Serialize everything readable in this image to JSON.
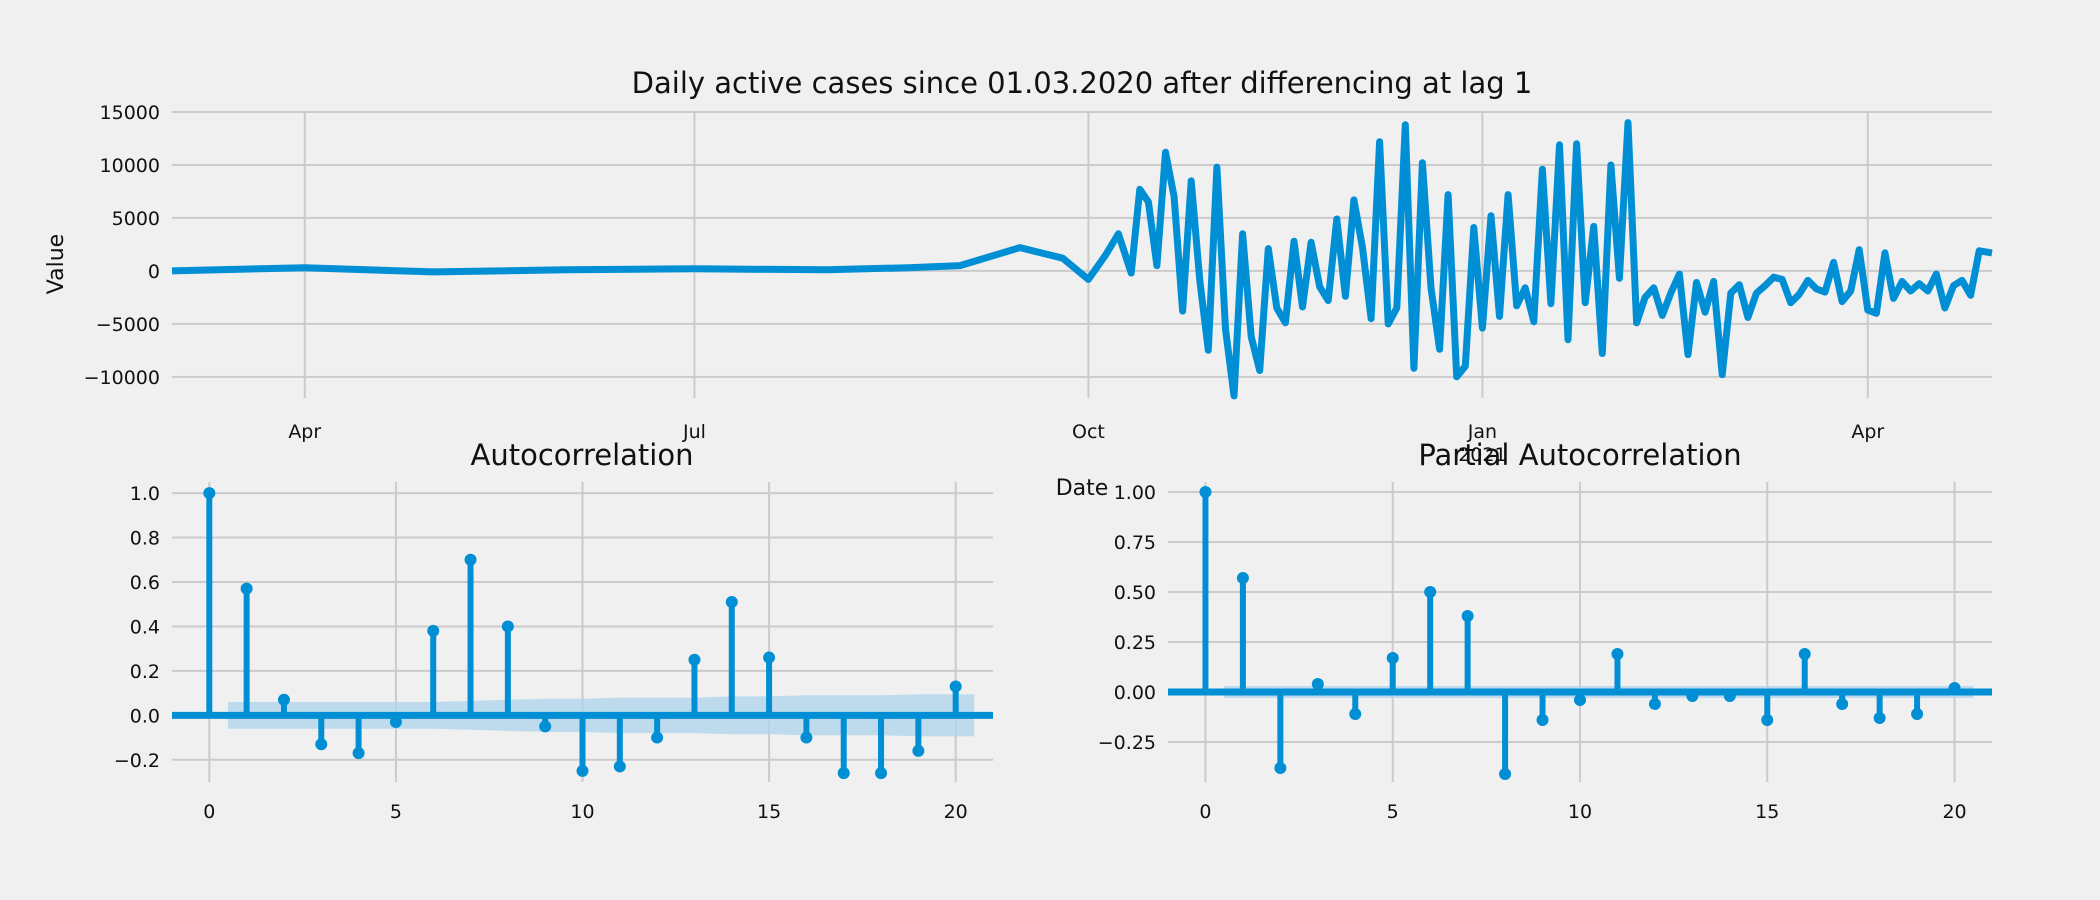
{
  "colors": {
    "background": "#f0f0f0",
    "series": "#008fd5",
    "confidence_band": "#aed4ee",
    "grid": "#cbcbcb"
  },
  "chart_data": [
    {
      "id": "timeseries",
      "type": "line",
      "title": "Daily active cases since 01.03.2020 after differencing at lag 1",
      "xlabel": "Date",
      "ylabel": "Value",
      "x_start": "2020-03-01",
      "x_end": "2021-04-30",
      "x_ticks": [
        {
          "date": "2020-04-01",
          "label": "Apr"
        },
        {
          "date": "2020-07-01",
          "label": "Jul"
        },
        {
          "date": "2020-10-01",
          "label": "Oct"
        },
        {
          "date": "2021-01-01",
          "label": "Jan",
          "sublabel": "2021"
        },
        {
          "date": "2021-04-01",
          "label": "Apr"
        }
      ],
      "ylim": [
        -12000,
        15000
      ],
      "y_ticks": [
        15000,
        10000,
        5000,
        0,
        -5000,
        -10000
      ],
      "y_tick_labels": [
        "15000",
        "10000",
        "5000",
        "0",
        "−5000",
        "−10000"
      ],
      "grid": true,
      "series": [
        {
          "x": [
            "2020-03-01",
            "2020-04-01",
            "2020-05-01",
            "2020-06-01",
            "2020-07-01",
            "2020-08-01",
            "2020-08-20",
            "2020-09-01",
            "2020-09-15",
            "2020-09-25",
            "2020-10-01",
            "2020-10-05",
            "2020-10-08",
            "2020-10-11",
            "2020-10-13",
            "2020-10-15",
            "2020-10-17",
            "2020-10-19",
            "2020-10-21",
            "2020-10-23",
            "2020-10-25",
            "2020-10-27",
            "2020-10-29",
            "2020-10-31",
            "2020-11-02",
            "2020-11-04",
            "2020-11-06",
            "2020-11-08",
            "2020-11-10",
            "2020-11-12",
            "2020-11-14",
            "2020-11-16",
            "2020-11-18",
            "2020-11-20",
            "2020-11-22",
            "2020-11-24",
            "2020-11-26",
            "2020-11-28",
            "2020-11-30",
            "2020-12-02",
            "2020-12-04",
            "2020-12-06",
            "2020-12-08",
            "2020-12-10",
            "2020-12-12",
            "2020-12-14",
            "2020-12-16",
            "2020-12-18",
            "2020-12-20",
            "2020-12-22",
            "2020-12-24",
            "2020-12-26",
            "2020-12-28",
            "2020-12-30",
            "2021-01-01",
            "2021-01-03",
            "2021-01-05",
            "2021-01-07",
            "2021-01-09",
            "2021-01-11",
            "2021-01-13",
            "2021-01-15",
            "2021-01-17",
            "2021-01-19",
            "2021-01-21",
            "2021-01-23",
            "2021-01-25",
            "2021-01-27",
            "2021-01-29",
            "2021-01-31",
            "2021-02-02",
            "2021-02-04",
            "2021-02-06",
            "2021-02-08",
            "2021-02-10",
            "2021-02-12",
            "2021-02-14",
            "2021-02-16",
            "2021-02-18",
            "2021-02-20",
            "2021-02-22",
            "2021-02-24",
            "2021-02-26",
            "2021-02-28",
            "2021-03-02",
            "2021-03-04",
            "2021-03-06",
            "2021-03-08",
            "2021-03-10",
            "2021-03-12",
            "2021-03-14",
            "2021-03-16",
            "2021-03-18",
            "2021-03-20",
            "2021-03-22",
            "2021-03-24",
            "2021-03-26",
            "2021-03-28",
            "2021-03-30",
            "2021-04-01",
            "2021-04-03",
            "2021-04-05",
            "2021-04-07",
            "2021-04-09",
            "2021-04-11",
            "2021-04-13",
            "2021-04-15",
            "2021-04-17",
            "2021-04-19",
            "2021-04-21",
            "2021-04-23",
            "2021-04-25",
            "2021-04-27",
            "2021-04-30"
          ],
          "y": [
            0,
            300,
            -100,
            100,
            200,
            100,
            300,
            500,
            2200,
            1200,
            -800,
            1500,
            3500,
            -200,
            7700,
            6500,
            500,
            11200,
            7000,
            -3800,
            8500,
            -900,
            -7500,
            9800,
            -5500,
            -11800,
            3500,
            -6200,
            -9400,
            2100,
            -3500,
            -4900,
            2800,
            -3400,
            2700,
            -1500,
            -2800,
            4900,
            -2400,
            6700,
            2200,
            -4500,
            12200,
            -5000,
            -3500,
            13800,
            -9200,
            10200,
            -1600,
            -7400,
            7200,
            -10000,
            -9000,
            4100,
            -5400,
            5200,
            -4300,
            7200,
            -3300,
            -1600,
            -4800,
            9600,
            -3100,
            11900,
            -6500,
            12000,
            -3000,
            4200,
            -7800,
            10000,
            -700,
            14000,
            -4900,
            -2500,
            -1600,
            -4200,
            -2100,
            -300,
            -7900,
            -1100,
            -3900,
            -1000,
            -9800,
            -2100,
            -1300,
            -4400,
            -2100,
            -1400,
            -600,
            -800,
            -3000,
            -2200,
            -900,
            -1700,
            -2000,
            800,
            -2900,
            -1900,
            2000,
            -3700,
            -4000,
            1700,
            -2600,
            -1000,
            -1900,
            -1200,
            -1900,
            -300,
            -3500,
            -1400,
            -900,
            -2300,
            1900,
            1700
          ]
        }
      ]
    },
    {
      "id": "acf",
      "type": "stem",
      "title": "Autocorrelation",
      "xlim": [
        -1,
        21
      ],
      "ylim": [
        -0.3,
        1.05
      ],
      "x_ticks": [
        0,
        5,
        10,
        15,
        20
      ],
      "y_ticks": [
        1.0,
        0.8,
        0.6,
        0.4,
        0.2,
        0.0,
        -0.2
      ],
      "y_tick_labels": [
        "1.0",
        "0.8",
        "0.6",
        "0.4",
        "0.2",
        "0.0",
        "−0.2"
      ],
      "lags": [
        0,
        1,
        2,
        3,
        4,
        5,
        6,
        7,
        8,
        9,
        10,
        11,
        12,
        13,
        14,
        15,
        16,
        17,
        18,
        19,
        20
      ],
      "values": [
        1.0,
        0.57,
        0.07,
        -0.13,
        -0.17,
        -0.03,
        0.38,
        0.7,
        0.4,
        -0.05,
        -0.25,
        -0.23,
        -0.1,
        0.25,
        0.51,
        0.26,
        -0.1,
        -0.26,
        -0.26,
        -0.16,
        0.13
      ],
      "confint": [
        0,
        0.06,
        0.06,
        0.06,
        0.06,
        0.06,
        0.06,
        0.065,
        0.07,
        0.075,
        0.075,
        0.08,
        0.08,
        0.08,
        0.085,
        0.085,
        0.09,
        0.09,
        0.09,
        0.095,
        0.095
      ]
    },
    {
      "id": "pacf",
      "type": "stem",
      "title": "Partial Autocorrelation",
      "xlim": [
        -1,
        21
      ],
      "ylim": [
        -0.45,
        1.05
      ],
      "x_ticks": [
        0,
        5,
        10,
        15,
        20
      ],
      "y_ticks": [
        1.0,
        0.75,
        0.5,
        0.25,
        0.0,
        -0.25
      ],
      "y_tick_labels": [
        "1.00",
        "0.75",
        "0.50",
        "0.25",
        "0.00",
        "−0.25"
      ],
      "lags": [
        0,
        1,
        2,
        3,
        4,
        5,
        6,
        7,
        8,
        9,
        10,
        11,
        12,
        13,
        14,
        15,
        16,
        17,
        18,
        19,
        20
      ],
      "values": [
        1.0,
        0.57,
        -0.38,
        0.04,
        -0.11,
        0.17,
        0.5,
        0.38,
        -0.41,
        -0.14,
        -0.04,
        0.19,
        -0.06,
        -0.02,
        -0.02,
        -0.14,
        0.19,
        -0.06,
        -0.13,
        -0.11,
        0.02
      ],
      "confint": [
        0,
        0.03,
        0.03,
        0.03,
        0.03,
        0.03,
        0.03,
        0.03,
        0.03,
        0.03,
        0.03,
        0.03,
        0.03,
        0.03,
        0.03,
        0.03,
        0.03,
        0.03,
        0.03,
        0.03,
        0.03
      ]
    }
  ]
}
